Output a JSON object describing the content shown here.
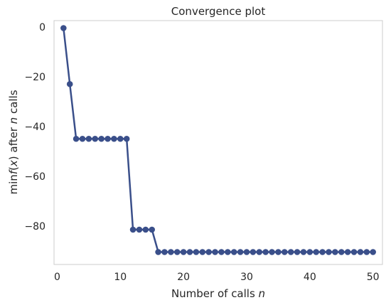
{
  "chart_data": {
    "type": "line",
    "title": "Convergence plot",
    "xlabel_prefix": "Number of calls ",
    "xlabel_var": "n",
    "ylabel_parts": {
      "a": "min",
      "b": "f",
      "c": "(",
      "d": "x",
      "e": ") after ",
      "f": "n",
      "g": " calls"
    },
    "xlim": [
      -0.5,
      51.5
    ],
    "ylim": [
      -95.5,
      2.5
    ],
    "x_ticks": [
      0,
      10,
      20,
      30,
      40,
      50
    ],
    "x_tick_labels": [
      "0",
      "10",
      "20",
      "30",
      "40",
      "50"
    ],
    "y_ticks": [
      0,
      -20,
      -40,
      -60,
      -80
    ],
    "y_tick_labels": [
      "0",
      "−20",
      "−40",
      "−60",
      "−80"
    ],
    "grid": false,
    "series": [
      {
        "color": "#3a4f8a",
        "x": [
          1,
          2,
          3,
          4,
          5,
          6,
          7,
          8,
          9,
          10,
          11,
          12,
          13,
          14,
          15,
          16,
          17,
          18,
          19,
          20,
          21,
          22,
          23,
          24,
          25,
          26,
          27,
          28,
          29,
          30,
          31,
          32,
          33,
          34,
          35,
          36,
          37,
          38,
          39,
          40,
          41,
          42,
          43,
          44,
          45,
          46,
          47,
          48,
          49,
          50
        ],
        "y": [
          -0.5,
          -23,
          -45,
          -45,
          -45,
          -45,
          -45,
          -45,
          -45,
          -45,
          -45,
          -81.5,
          -81.5,
          -81.5,
          -81.5,
          -90.5,
          -90.5,
          -90.5,
          -90.5,
          -90.5,
          -90.5,
          -90.5,
          -90.5,
          -90.5,
          -90.5,
          -90.5,
          -90.5,
          -90.5,
          -90.5,
          -90.5,
          -90.5,
          -90.5,
          -90.5,
          -90.5,
          -90.5,
          -90.5,
          -90.5,
          -90.5,
          -90.5,
          -90.5,
          -90.5,
          -90.5,
          -90.5,
          -90.5,
          -90.5,
          -90.5,
          -90.5,
          -90.5,
          -90.5,
          -90.5
        ]
      }
    ]
  }
}
